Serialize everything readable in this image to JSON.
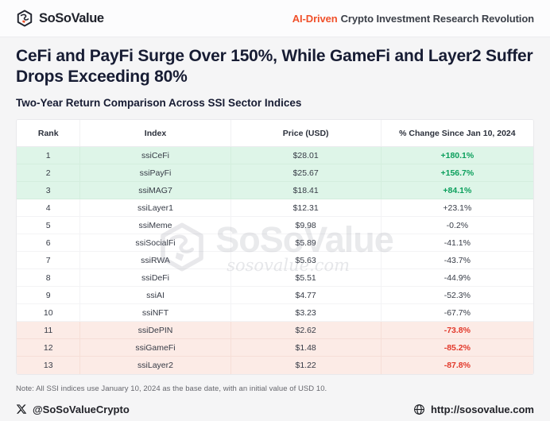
{
  "header": {
    "brand": "SoSoValue",
    "tagline": {
      "highlight": "AI-Driven",
      "rest": "Crypto Investment Research Revolution"
    }
  },
  "title": "CeFi and PayFi Surge Over 150%, While GameFi and Layer2 Suffer Drops Exceeding 80%",
  "subtitle": "Two-Year Return Comparison Across SSI Sector Indices",
  "chart_data": {
    "type": "table",
    "title": "Two-Year Return Comparison Across SSI Sector Indices",
    "columns": [
      "Rank",
      "Index",
      "Price (USD)",
      "% Change Since Jan 10, 2024"
    ],
    "rows": [
      {
        "rank": "1",
        "index": "ssiCeFi",
        "price": "$28.01",
        "change": "+180.1%",
        "group": "gain"
      },
      {
        "rank": "2",
        "index": "ssiPayFi",
        "price": "$25.67",
        "change": "+156.7%",
        "group": "gain"
      },
      {
        "rank": "3",
        "index": "ssiMAG7",
        "price": "$18.41",
        "change": "+84.1%",
        "group": "gain"
      },
      {
        "rank": "4",
        "index": "ssiLayer1",
        "price": "$12.31",
        "change": "+23.1%",
        "group": "mid"
      },
      {
        "rank": "5",
        "index": "ssiMeme",
        "price": "$9.98",
        "change": "-0.2%",
        "group": "mid"
      },
      {
        "rank": "6",
        "index": "ssiSocialFi",
        "price": "$5.89",
        "change": "-41.1%",
        "group": "mid"
      },
      {
        "rank": "7",
        "index": "ssiRWA",
        "price": "$5.63",
        "change": "-43.7%",
        "group": "mid"
      },
      {
        "rank": "8",
        "index": "ssiDeFi",
        "price": "$5.51",
        "change": "-44.9%",
        "group": "mid"
      },
      {
        "rank": "9",
        "index": "ssiAI",
        "price": "$4.77",
        "change": "-52.3%",
        "group": "mid"
      },
      {
        "rank": "10",
        "index": "ssiNFT",
        "price": "$3.23",
        "change": "-67.7%",
        "group": "mid"
      },
      {
        "rank": "11",
        "index": "ssiDePIN",
        "price": "$2.62",
        "change": "-73.8%",
        "group": "loss"
      },
      {
        "rank": "12",
        "index": "ssiGameFi",
        "price": "$1.48",
        "change": "-85.2%",
        "group": "loss"
      },
      {
        "rank": "13",
        "index": "ssiLayer2",
        "price": "$1.22",
        "change": "-87.8%",
        "group": "loss"
      }
    ],
    "note": "All SSI indices use January 10, 2024 as the base date, with an initial value of USD 10."
  },
  "watermark": {
    "brand": "SoSoValue",
    "domain": "sosovalue.com"
  },
  "note": "Note: All SSI indices use January 10, 2024 as the base date, with an initial value of USD 10.",
  "footer": {
    "twitter_handle": "@SoSoValueCrypto",
    "website": "http://sosovalue.com"
  },
  "colors": {
    "accent_orange": "#F0502A",
    "title_navy": "#171C33",
    "gain_bg": "#DEF5E8",
    "gain_text": "#0B9F5C",
    "loss_bg": "#FCEBE6",
    "loss_text": "#E2392B"
  }
}
